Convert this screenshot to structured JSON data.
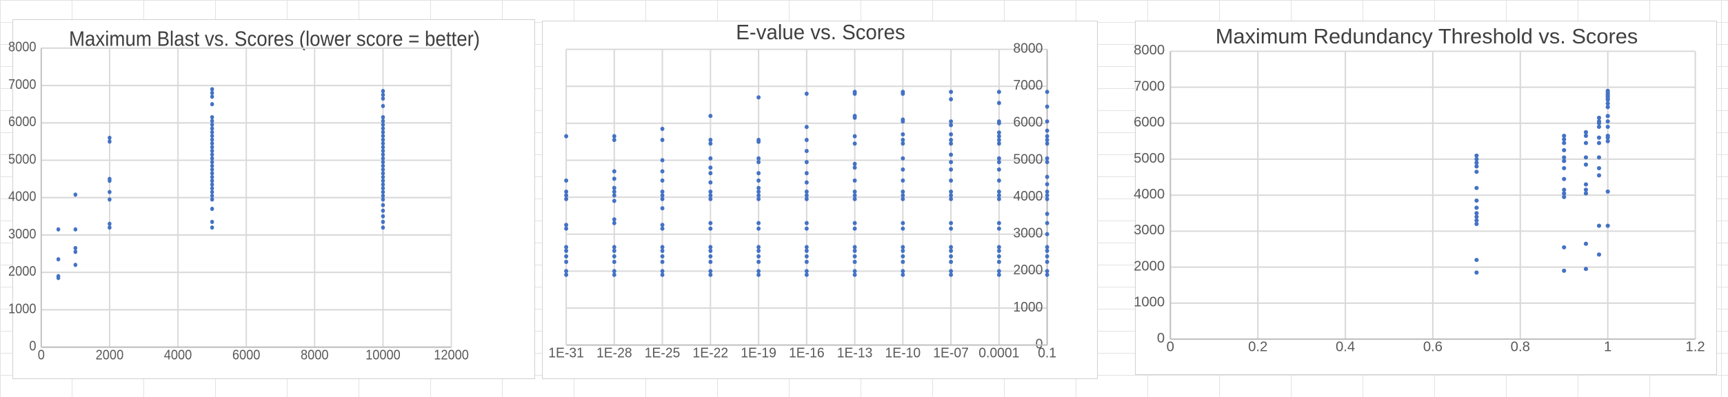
{
  "charts": [
    {
      "title": "Maximum Blast vs. Scores (lower score = better)",
      "chart_data": {
        "type": "scatter",
        "title": "Maximum Blast vs. Scores (lower score = better)",
        "xlabel": "",
        "ylabel": "",
        "xlim": [
          0,
          12000
        ],
        "ylim": [
          0,
          8000
        ],
        "x_ticks": [
          "0",
          "2000",
          "4000",
          "6000",
          "8000",
          "10000",
          "12000"
        ],
        "y_ticks": [
          "0",
          "1000",
          "2000",
          "3000",
          "4000",
          "5000",
          "6000",
          "7000",
          "8000"
        ],
        "grid": true,
        "legend": "none",
        "marker_color": "#4472c4",
        "points": [
          [
            500,
            1850
          ],
          [
            500,
            1900
          ],
          [
            500,
            2350
          ],
          [
            500,
            3150
          ],
          [
            1000,
            2200
          ],
          [
            1000,
            2550
          ],
          [
            1000,
            2650
          ],
          [
            1000,
            3150
          ],
          [
            1000,
            4080
          ],
          [
            2000,
            3200
          ],
          [
            2000,
            3300
          ],
          [
            2000,
            3950
          ],
          [
            2000,
            4150
          ],
          [
            2000,
            4450
          ],
          [
            2000,
            4500
          ],
          [
            2000,
            5500
          ],
          [
            2000,
            5600
          ],
          [
            5000,
            3200
          ],
          [
            5000,
            3350
          ],
          [
            5000,
            3700
          ],
          [
            5000,
            3950
          ],
          [
            5000,
            4050
          ],
          [
            5000,
            4150
          ],
          [
            5000,
            4250
          ],
          [
            5000,
            4350
          ],
          [
            5000,
            4450
          ],
          [
            5000,
            4550
          ],
          [
            5000,
            4650
          ],
          [
            5000,
            4750
          ],
          [
            5000,
            4850
          ],
          [
            5000,
            4950
          ],
          [
            5000,
            5050
          ],
          [
            5000,
            5150
          ],
          [
            5000,
            5250
          ],
          [
            5000,
            5350
          ],
          [
            5000,
            5450
          ],
          [
            5000,
            5550
          ],
          [
            5000,
            5650
          ],
          [
            5000,
            5750
          ],
          [
            5000,
            5850
          ],
          [
            5000,
            5950
          ],
          [
            5000,
            6050
          ],
          [
            5000,
            6150
          ],
          [
            5000,
            6500
          ],
          [
            5000,
            6700
          ],
          [
            5000,
            6800
          ],
          [
            5000,
            6900
          ],
          [
            10000,
            3200
          ],
          [
            10000,
            3350
          ],
          [
            10000,
            3500
          ],
          [
            10000,
            3650
          ],
          [
            10000,
            3800
          ],
          [
            10000,
            3950
          ],
          [
            10000,
            4050
          ],
          [
            10000,
            4150
          ],
          [
            10000,
            4250
          ],
          [
            10000,
            4350
          ],
          [
            10000,
            4450
          ],
          [
            10000,
            4550
          ],
          [
            10000,
            4650
          ],
          [
            10000,
            4750
          ],
          [
            10000,
            4850
          ],
          [
            10000,
            4950
          ],
          [
            10000,
            5050
          ],
          [
            10000,
            5150
          ],
          [
            10000,
            5250
          ],
          [
            10000,
            5350
          ],
          [
            10000,
            5450
          ],
          [
            10000,
            5550
          ],
          [
            10000,
            5650
          ],
          [
            10000,
            5750
          ],
          [
            10000,
            5850
          ],
          [
            10000,
            5950
          ],
          [
            10000,
            6050
          ],
          [
            10000,
            6150
          ],
          [
            10000,
            6450
          ],
          [
            10000,
            6650
          ],
          [
            10000,
            6750
          ],
          [
            10000,
            6850
          ]
        ]
      }
    },
    {
      "title": "E-value vs. Scores",
      "chart_data": {
        "type": "scatter",
        "title": "E-value vs. Scores",
        "xlabel": "",
        "ylabel": "",
        "xscale": "log",
        "xlim": [
          1e-31,
          0.1
        ],
        "ylim": [
          0,
          8000
        ],
        "x_ticks": [
          "1E-31",
          "1E-28",
          "1E-25",
          "1E-22",
          "1E-19",
          "1E-16",
          "1E-13",
          "1E-10",
          "1E-07",
          "0.0001",
          "0.1"
        ],
        "y_ticks": [
          "0",
          "1000",
          "2000",
          "3000",
          "4000",
          "5000",
          "6000",
          "7000",
          "8000"
        ],
        "y_axis_position": "right",
        "grid": true,
        "legend": "none",
        "marker_color": "#4472c4",
        "columns": [
          {
            "x": 1e-31,
            "y": [
              1900,
              2000,
              2250,
              2400,
              2550,
              2650,
              3150,
              3250,
              3950,
              4050,
              4150,
              4450,
              5650
            ]
          },
          {
            "x": 1e-28,
            "y": [
              1900,
              2000,
              2250,
              2400,
              2550,
              2650,
              3300,
              3400,
              3900,
              4050,
              4150,
              4250,
              4500,
              4700,
              5550,
              5650
            ]
          },
          {
            "x": 1e-25,
            "y": [
              1900,
              2000,
              2250,
              2400,
              2550,
              2650,
              3150,
              3250,
              3700,
              3950,
              4050,
              4150,
              4450,
              4700,
              5000,
              5550,
              5850
            ]
          },
          {
            "x": 1e-22,
            "y": [
              1900,
              2000,
              2250,
              2400,
              2550,
              2650,
              3150,
              3300,
              3950,
              4050,
              4150,
              4400,
              4650,
              4800,
              5050,
              5450,
              5550,
              6200
            ]
          },
          {
            "x": 1e-19,
            "y": [
              1900,
              2000,
              2250,
              2400,
              2550,
              2650,
              3150,
              3300,
              3950,
              4050,
              4150,
              4250,
              4450,
              4650,
              4950,
              5050,
              5500,
              5550,
              6700
            ]
          },
          {
            "x": 1e-16,
            "y": [
              1900,
              2000,
              2250,
              2400,
              2550,
              2650,
              3150,
              3300,
              3950,
              4050,
              4150,
              4400,
              4650,
              4950,
              5250,
              5550,
              5900,
              6800
            ]
          },
          {
            "x": 1e-13,
            "y": [
              1900,
              2000,
              2250,
              2400,
              2550,
              2650,
              3150,
              3300,
              3950,
              4050,
              4150,
              4450,
              4800,
              4900,
              5450,
              5650,
              6150,
              6200,
              6800,
              6850
            ]
          },
          {
            "x": 1e-10,
            "y": [
              1900,
              2000,
              2250,
              2400,
              2550,
              2650,
              3150,
              3300,
              3950,
              4050,
              4150,
              4450,
              4750,
              5050,
              5450,
              5550,
              5700,
              6050,
              6100,
              6800,
              6850
            ]
          },
          {
            "x": 1e-07,
            "y": [
              1900,
              2000,
              2250,
              2400,
              2550,
              2650,
              3150,
              3300,
              3950,
              4050,
              4150,
              4450,
              4750,
              4950,
              5150,
              5450,
              5550,
              5700,
              5950,
              6050,
              6650,
              6850
            ]
          },
          {
            "x": 0.0001,
            "y": [
              1900,
              2000,
              2250,
              2400,
              2550,
              2650,
              3150,
              3300,
              3950,
              4050,
              4150,
              4450,
              4750,
              4950,
              5050,
              5450,
              5550,
              5650,
              5750,
              6000,
              6050,
              6550,
              6850
            ]
          },
          {
            "x": 0.1,
            "y": [
              1900,
              2000,
              2250,
              2400,
              2550,
              2650,
              3000,
              3300,
              3550,
              3950,
              4050,
              4150,
              4350,
              4550,
              4950,
              5050,
              5450,
              5550,
              5650,
              5800,
              6050,
              6450,
              6850
            ]
          }
        ]
      }
    },
    {
      "title": "Maximum Redundancy Threshold vs. Scores",
      "chart_data": {
        "type": "scatter",
        "title": "Maximum Redundancy Threshold vs. Scores",
        "xlabel": "",
        "ylabel": "",
        "xlim": [
          0,
          1.2
        ],
        "ylim": [
          0,
          8000
        ],
        "x_ticks": [
          "0",
          "0.2",
          "0.4",
          "0.6",
          "0.8",
          "1",
          "1.2"
        ],
        "y_ticks": [
          "0",
          "1000",
          "2000",
          "3000",
          "4000",
          "5000",
          "6000",
          "7000",
          "8000"
        ],
        "grid": true,
        "legend": "none",
        "marker_color": "#4472c4",
        "points": [
          [
            0.7,
            1850
          ],
          [
            0.7,
            2200
          ],
          [
            0.7,
            3200
          ],
          [
            0.7,
            3300
          ],
          [
            0.7,
            3400
          ],
          [
            0.7,
            3500
          ],
          [
            0.7,
            3650
          ],
          [
            0.7,
            3850
          ],
          [
            0.7,
            4200
          ],
          [
            0.7,
            4650
          ],
          [
            0.7,
            4800
          ],
          [
            0.7,
            4900
          ],
          [
            0.7,
            5000
          ],
          [
            0.7,
            5100
          ],
          [
            0.9,
            1900
          ],
          [
            0.9,
            2550
          ],
          [
            0.9,
            3950
          ],
          [
            0.9,
            4050
          ],
          [
            0.9,
            4150
          ],
          [
            0.9,
            4450
          ],
          [
            0.9,
            4750
          ],
          [
            0.9,
            4950
          ],
          [
            0.9,
            5050
          ],
          [
            0.9,
            5250
          ],
          [
            0.9,
            5450
          ],
          [
            0.9,
            5550
          ],
          [
            0.9,
            5650
          ],
          [
            0.95,
            1950
          ],
          [
            0.95,
            2650
          ],
          [
            0.95,
            4050
          ],
          [
            0.95,
            4150
          ],
          [
            0.95,
            4300
          ],
          [
            0.95,
            4850
          ],
          [
            0.95,
            5050
          ],
          [
            0.95,
            5450
          ],
          [
            0.95,
            5650
          ],
          [
            0.95,
            5750
          ],
          [
            0.98,
            2350
          ],
          [
            0.98,
            3150
          ],
          [
            0.98,
            4550
          ],
          [
            0.98,
            4750
          ],
          [
            0.98,
            5050
          ],
          [
            0.98,
            5450
          ],
          [
            0.98,
            5600
          ],
          [
            0.98,
            5900
          ],
          [
            0.98,
            6000
          ],
          [
            0.98,
            6050
          ],
          [
            0.98,
            6150
          ],
          [
            1,
            3150
          ],
          [
            1,
            4100
          ],
          [
            1,
            5500
          ],
          [
            1,
            5600
          ],
          [
            1,
            5650
          ],
          [
            1,
            5900
          ],
          [
            1,
            6050
          ],
          [
            1,
            6200
          ],
          [
            1,
            6450
          ],
          [
            1,
            6550
          ],
          [
            1,
            6650
          ],
          [
            1,
            6700
          ],
          [
            1,
            6750
          ],
          [
            1,
            6800
          ],
          [
            1,
            6850
          ],
          [
            1,
            6900
          ]
        ]
      }
    }
  ]
}
